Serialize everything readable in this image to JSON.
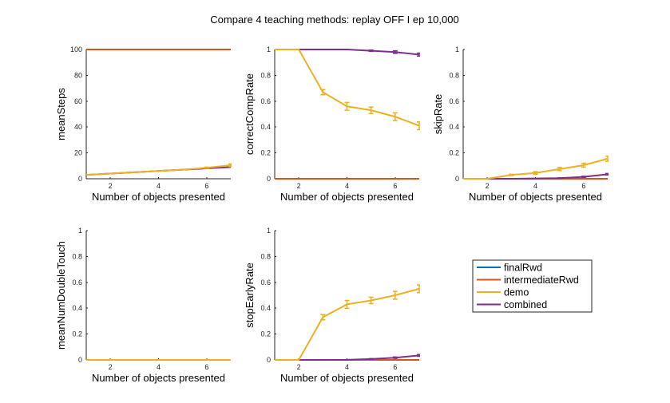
{
  "figure_title": "Compare 4 teaching methods: replay OFF I ep 10,000",
  "legend": {
    "entries": [
      {
        "name": "finalRwd",
        "color": "#0072BD"
      },
      {
        "name": "intermediateRwd",
        "color": "#D95319"
      },
      {
        "name": "demo",
        "color": "#EDB120"
      },
      {
        "name": "combined",
        "color": "#7E2F8E"
      }
    ]
  },
  "chart_data": [
    {
      "type": "line",
      "title": "",
      "xlabel": "Number of objects presented",
      "ylabel": "meanSteps",
      "xlim": [
        1,
        7
      ],
      "ylim": [
        0,
        100
      ],
      "xticks": [
        2,
        4,
        6
      ],
      "yticks": [
        0,
        20,
        40,
        60,
        80,
        100
      ],
      "ytick_labels": [
        "0",
        "20",
        "40",
        "60",
        "80",
        "100"
      ],
      "x": [
        1,
        2,
        3,
        4,
        5,
        6,
        7
      ],
      "series": [
        {
          "name": "finalRwd",
          "color": "#0072BD",
          "values": [
            100,
            100,
            100,
            100,
            100,
            100,
            100
          ]
        },
        {
          "name": "intermediateRwd",
          "color": "#D95319",
          "values": [
            100,
            100,
            100,
            100,
            100,
            100,
            100
          ]
        },
        {
          "name": "demo",
          "color": "#EDB120",
          "values": [
            3,
            4,
            5,
            6,
            7,
            8.5,
            10.5
          ],
          "errors": [
            0,
            0,
            0,
            0,
            0,
            0.5,
            1
          ]
        },
        {
          "name": "combined",
          "color": "#7E2F8E",
          "values": [
            3,
            4,
            5,
            6,
            7,
            8,
            9
          ]
        }
      ]
    },
    {
      "type": "line",
      "title": "",
      "xlabel": "Number of objects presented",
      "ylabel": "correctCompRate",
      "xlim": [
        1,
        7
      ],
      "ylim": [
        0,
        1
      ],
      "xticks": [
        2,
        4,
        6
      ],
      "yticks": [
        0,
        0.2,
        0.4,
        0.6,
        0.8,
        1
      ],
      "ytick_labels": [
        "0",
        "0.2",
        "0.4",
        "0.6",
        "0.8",
        "1"
      ],
      "x": [
        1,
        2,
        3,
        4,
        5,
        6,
        7
      ],
      "series": [
        {
          "name": "finalRwd",
          "color": "#0072BD",
          "values": [
            0,
            0,
            0,
            0,
            0,
            0,
            0
          ]
        },
        {
          "name": "intermediateRwd",
          "color": "#D95319",
          "values": [
            0,
            0,
            0,
            0,
            0,
            0,
            0
          ]
        },
        {
          "name": "demo",
          "color": "#EDB120",
          "values": [
            1,
            1,
            0.67,
            0.56,
            0.53,
            0.48,
            0.41
          ],
          "errors": [
            0,
            0,
            0.02,
            0.03,
            0.025,
            0.03,
            0.03
          ]
        },
        {
          "name": "combined",
          "color": "#7E2F8E",
          "values": [
            1,
            1,
            1,
            1,
            0.99,
            0.98,
            0.96
          ],
          "errors": [
            0,
            0,
            0,
            0,
            0.005,
            0.01,
            0.012
          ]
        }
      ]
    },
    {
      "type": "line",
      "title": "",
      "xlabel": "Number of objects presented",
      "ylabel": "skipRate",
      "xlim": [
        1,
        7
      ],
      "ylim": [
        0,
        1
      ],
      "xticks": [
        2,
        4,
        6
      ],
      "yticks": [
        0,
        0.2,
        0.4,
        0.6,
        0.8,
        1
      ],
      "ytick_labels": [
        "0",
        "0.2",
        "0.4",
        "0.6",
        "0.8",
        "1"
      ],
      "x": [
        1,
        2,
        3,
        4,
        5,
        6,
        7
      ],
      "series": [
        {
          "name": "finalRwd",
          "color": "#0072BD",
          "values": [
            0,
            0,
            0,
            0,
            0,
            0,
            0
          ]
        },
        {
          "name": "intermediateRwd",
          "color": "#D95319",
          "values": [
            0,
            0,
            0,
            0,
            0,
            0,
            0
          ]
        },
        {
          "name": "demo",
          "color": "#EDB120",
          "values": [
            0,
            0,
            0.03,
            0.045,
            0.075,
            0.105,
            0.155
          ],
          "errors": [
            0,
            0,
            0.005,
            0.01,
            0.012,
            0.015,
            0.02
          ]
        },
        {
          "name": "combined",
          "color": "#7E2F8E",
          "values": [
            0,
            0,
            0,
            0.002,
            0.005,
            0.015,
            0.035
          ],
          "errors": [
            0,
            0,
            0,
            0,
            0.002,
            0.004,
            0.006
          ]
        }
      ]
    },
    {
      "type": "line",
      "title": "",
      "xlabel": "Number of objects presented",
      "ylabel": "meanNumDoubleTouch",
      "xlim": [
        1,
        7
      ],
      "ylim": [
        0,
        1
      ],
      "xticks": [
        2,
        4,
        6
      ],
      "yticks": [
        0,
        0.2,
        0.4,
        0.6,
        0.8,
        1
      ],
      "ytick_labels": [
        "0",
        "0.2",
        "0.4",
        "0.6",
        "0.8",
        "1"
      ],
      "x": [
        1,
        2,
        3,
        4,
        5,
        6,
        7
      ],
      "series": [
        {
          "name": "finalRwd",
          "color": "#0072BD",
          "values": [
            0,
            0,
            0,
            0,
            0,
            0,
            0
          ]
        },
        {
          "name": "intermediateRwd",
          "color": "#D95319",
          "values": [
            0,
            0,
            0,
            0,
            0,
            0,
            0
          ]
        },
        {
          "name": "demo",
          "color": "#EDB120",
          "values": [
            0,
            0,
            0,
            0,
            0,
            0,
            0
          ]
        },
        {
          "name": "combined",
          "color": "#7E2F8E",
          "values": [
            0,
            0,
            0,
            0,
            0,
            0,
            0
          ]
        }
      ]
    },
    {
      "type": "line",
      "title": "",
      "xlabel": "Number of objects presented",
      "ylabel": "stopEarlyRate",
      "xlim": [
        1,
        7
      ],
      "ylim": [
        0,
        1
      ],
      "xticks": [
        2,
        4,
        6
      ],
      "yticks": [
        0,
        0.2,
        0.4,
        0.6,
        0.8,
        1
      ],
      "ytick_labels": [
        "0",
        "0.2",
        "0.4",
        "0.6",
        "0.8",
        "1"
      ],
      "x": [
        1,
        2,
        3,
        4,
        5,
        6,
        7
      ],
      "series": [
        {
          "name": "finalRwd",
          "color": "#0072BD",
          "values": [
            0,
            0,
            0,
            0,
            0,
            0,
            0
          ]
        },
        {
          "name": "intermediateRwd",
          "color": "#D95319",
          "values": [
            0,
            0,
            0,
            0,
            0,
            0,
            0
          ]
        },
        {
          "name": "demo",
          "color": "#EDB120",
          "values": [
            0,
            0,
            0.33,
            0.43,
            0.46,
            0.5,
            0.55
          ],
          "errors": [
            0,
            0,
            0.02,
            0.03,
            0.025,
            0.03,
            0.03
          ]
        },
        {
          "name": "combined",
          "color": "#7E2F8E",
          "values": [
            0,
            0,
            0,
            0.001,
            0.007,
            0.017,
            0.035
          ],
          "errors": [
            0,
            0,
            0,
            0,
            0.003,
            0.005,
            0.007
          ]
        }
      ]
    }
  ]
}
